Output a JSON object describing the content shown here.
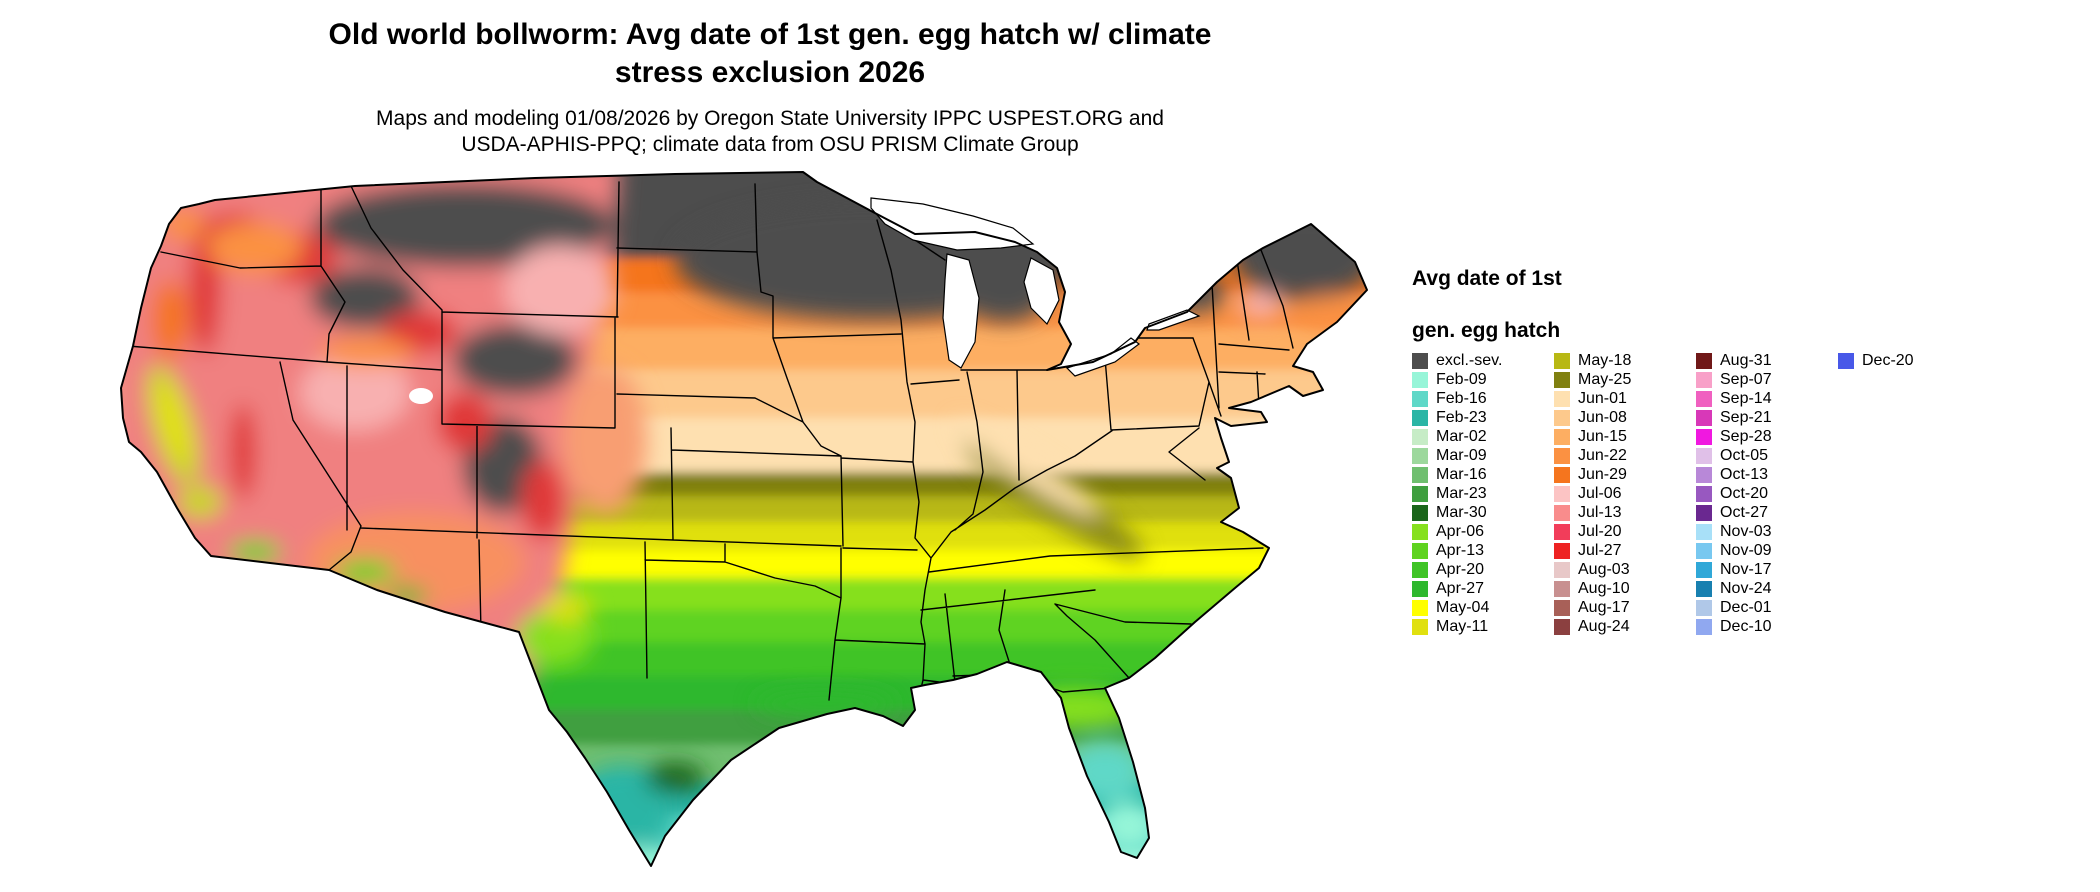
{
  "title": {
    "line1": "Old world bollworm: Avg date of 1st gen. egg hatch w/ climate",
    "line2": "stress exclusion 2026"
  },
  "subtitle": {
    "line1": "Maps and modeling 01/08/2026 by Oregon State University IPPC USPEST.ORG and",
    "line2": "USDA-APHIS-PPQ; climate data from OSU PRISM Climate Group"
  },
  "map": {
    "description": "Choropleth raster map of the contiguous United States showing average date of first generation egg hatch; dark gray areas excluded by severe climate stress",
    "water_color": "#ffffff",
    "border_color": "#000000"
  },
  "legend": {
    "title_line1": "Avg date of 1st",
    "title_line2": "gen. egg hatch",
    "columns": [
      [
        {
          "label": "excl.-sev.",
          "color": "#4d4d4d"
        },
        {
          "label": "Feb-09",
          "color": "#96f5d8"
        },
        {
          "label": "Feb-16",
          "color": "#5fd8c8"
        },
        {
          "label": "Feb-23",
          "color": "#2ab5a5"
        },
        {
          "label": "Mar-02",
          "color": "#c6ecc6"
        },
        {
          "label": "Mar-09",
          "color": "#9cd89c"
        },
        {
          "label": "Mar-16",
          "color": "#6fbf6f"
        },
        {
          "label": "Mar-23",
          "color": "#3f9f3f"
        },
        {
          "label": "Mar-30",
          "color": "#1a661a"
        },
        {
          "label": "Apr-06",
          "color": "#86e01e"
        },
        {
          "label": "Apr-13",
          "color": "#5fd320"
        },
        {
          "label": "Apr-20",
          "color": "#3fc426"
        },
        {
          "label": "Apr-27",
          "color": "#2eb82e"
        },
        {
          "label": "May-04",
          "color": "#ffff00"
        },
        {
          "label": "May-11",
          "color": "#e0e010"
        }
      ],
      [
        {
          "label": "May-18",
          "color": "#b8b814"
        },
        {
          "label": "May-25",
          "color": "#808010"
        },
        {
          "label": "Jun-01",
          "color": "#fee0b0"
        },
        {
          "label": "Jun-08",
          "color": "#fdc98c"
        },
        {
          "label": "Jun-15",
          "color": "#fdae62"
        },
        {
          "label": "Jun-22",
          "color": "#fb9142"
        },
        {
          "label": "Jun-29",
          "color": "#f5751e"
        },
        {
          "label": "Jul-06",
          "color": "#fcc4c4"
        },
        {
          "label": "Jul-13",
          "color": "#f98c8c"
        },
        {
          "label": "Jul-20",
          "color": "#f23d5a"
        },
        {
          "label": "Jul-27",
          "color": "#ee2222"
        },
        {
          "label": "Aug-03",
          "color": "#e8c8c8"
        },
        {
          "label": "Aug-10",
          "color": "#c89090"
        },
        {
          "label": "Aug-17",
          "color": "#a86058"
        },
        {
          "label": "Aug-24",
          "color": "#8b4040"
        }
      ],
      [
        {
          "label": "Aug-31",
          "color": "#701818"
        },
        {
          "label": "Sep-07",
          "color": "#f8a0c8"
        },
        {
          "label": "Sep-14",
          "color": "#f060c0"
        },
        {
          "label": "Sep-21",
          "color": "#d838b8"
        },
        {
          "label": "Sep-28",
          "color": "#f018e0"
        },
        {
          "label": "Oct-05",
          "color": "#e0c0e8"
        },
        {
          "label": "Oct-13",
          "color": "#b888d8"
        },
        {
          "label": "Oct-20",
          "color": "#9858c0"
        },
        {
          "label": "Oct-27",
          "color": "#6a2890"
        },
        {
          "label": "Nov-03",
          "color": "#a8e0f8"
        },
        {
          "label": "Nov-09",
          "color": "#78c8f0"
        },
        {
          "label": "Nov-17",
          "color": "#30a8d8"
        },
        {
          "label": "Nov-24",
          "color": "#1880b0"
        },
        {
          "label": "Dec-01",
          "color": "#b0c8e8"
        },
        {
          "label": "Dec-10",
          "color": "#90a8f0"
        }
      ],
      [
        {
          "label": "Dec-20",
          "color": "#4858e8"
        }
      ]
    ]
  }
}
